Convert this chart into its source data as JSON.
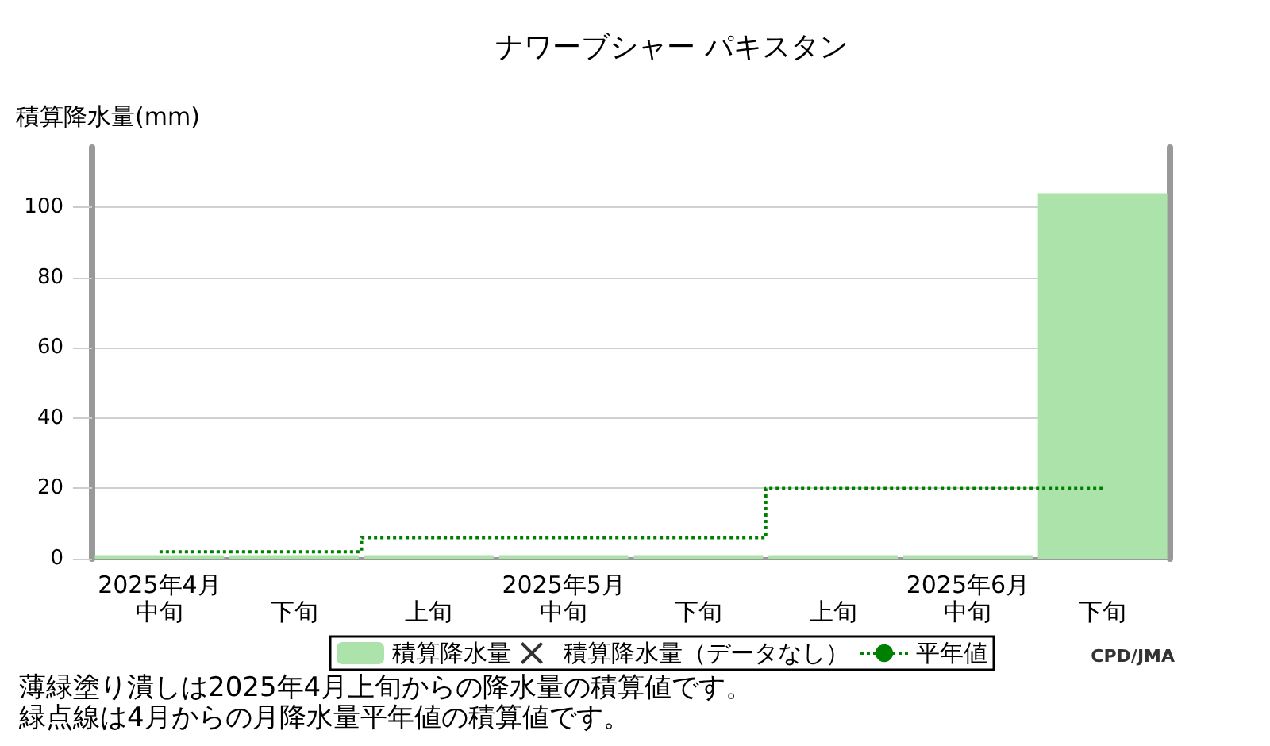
{
  "chart_data": {
    "type": "bar",
    "title": "ナワーブシャー パキスタン",
    "ylabel": "積算降水量(mm)",
    "categories": [
      "2025年4月中旬",
      "下旬",
      "上旬",
      "2025年5月中旬",
      "下旬",
      "上旬",
      "2025年6月中旬",
      "下旬"
    ],
    "series": [
      {
        "name": "積算降水量",
        "color": "#abe3aa",
        "values": [
          1,
          1,
          1,
          1,
          1,
          1,
          1,
          104
        ]
      },
      {
        "name": "積算降水量（データなし）",
        "type": "scatter",
        "marker": "cross",
        "color": "#000000",
        "values": [
          null,
          null,
          null,
          null,
          null,
          null,
          null,
          null
        ]
      },
      {
        "name": "平年値",
        "type": "step",
        "color": "#008000",
        "line_style": "dotted",
        "values": [
          2,
          2,
          6,
          6,
          6,
          20,
          20,
          20
        ]
      }
    ],
    "ylim": [
      0,
      117
    ],
    "yticks": [
      0,
      20,
      40,
      60,
      80,
      100
    ],
    "grid": "y",
    "legend": "bottom",
    "annotations": [
      "薄緑塗り潰しは2025年4月上旬からの降水量の積算値です。",
      "緑点線は4月からの月降水量平年値の積算値です。",
      "CPD/JMA"
    ]
  }
}
